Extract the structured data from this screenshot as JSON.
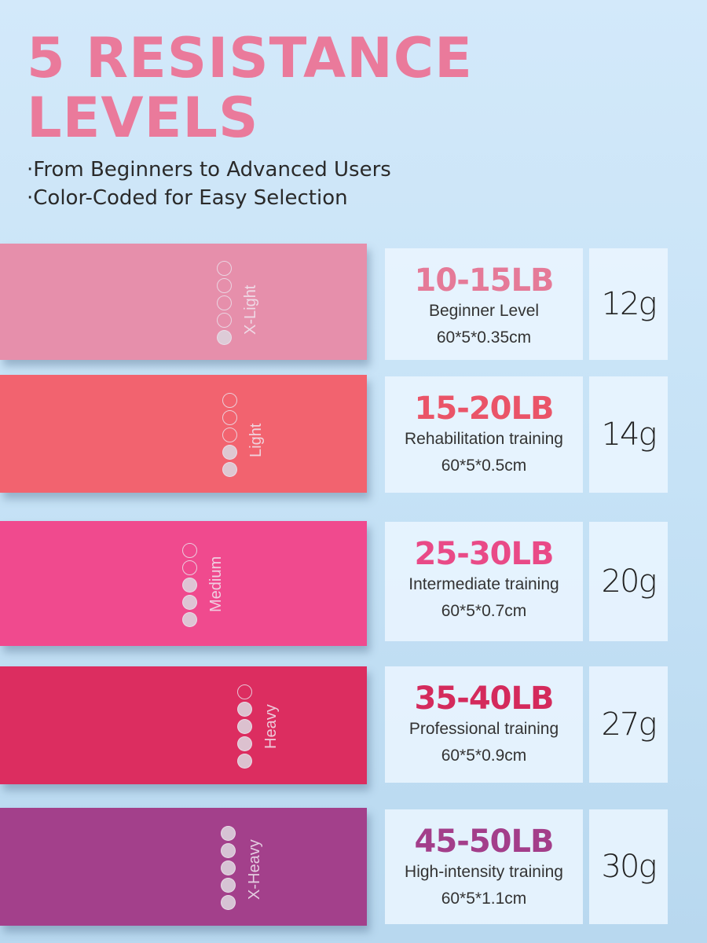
{
  "header": {
    "title_line1": "5 RESISTANCE",
    "title_line2": "LEVELS",
    "bullets": [
      "·From Beginners to Advanced Users",
      "·Color-Coded for Easy Selection"
    ]
  },
  "levels": [
    {
      "name": "X-Light",
      "filled": 1,
      "range": "10-15LB",
      "desc": "Beginner Level",
      "size": "60*5*0.35cm",
      "weight": "12g",
      "band_color": "#e68fab",
      "range_color": "#e57a98"
    },
    {
      "name": "Light",
      "filled": 2,
      "range": "15-20LB",
      "desc": "Rehabilitation training",
      "size": "60*5*0.5cm",
      "weight": "14g",
      "band_color": "#f2636f",
      "range_color": "#ea5468"
    },
    {
      "name": "Medium",
      "filled": 3,
      "range": "25-30LB",
      "desc": "Intermediate training",
      "size": "60*5*0.7cm",
      "weight": "20g",
      "band_color": "#f04a8e",
      "range_color": "#e94a87"
    },
    {
      "name": "Heavy",
      "filled": 4,
      "range": "35-40LB",
      "desc": "Professional training",
      "size": "60*5*0.9cm",
      "weight": "27g",
      "band_color": "#dc2d60",
      "range_color": "#d42a5c"
    },
    {
      "name": "X-Heavy",
      "filled": 5,
      "range": "45-50LB",
      "desc": "High-intensity training",
      "size": "60*5*1.1cm",
      "weight": "30g",
      "band_color": "#a3408b",
      "range_color": "#a33e8a"
    }
  ]
}
